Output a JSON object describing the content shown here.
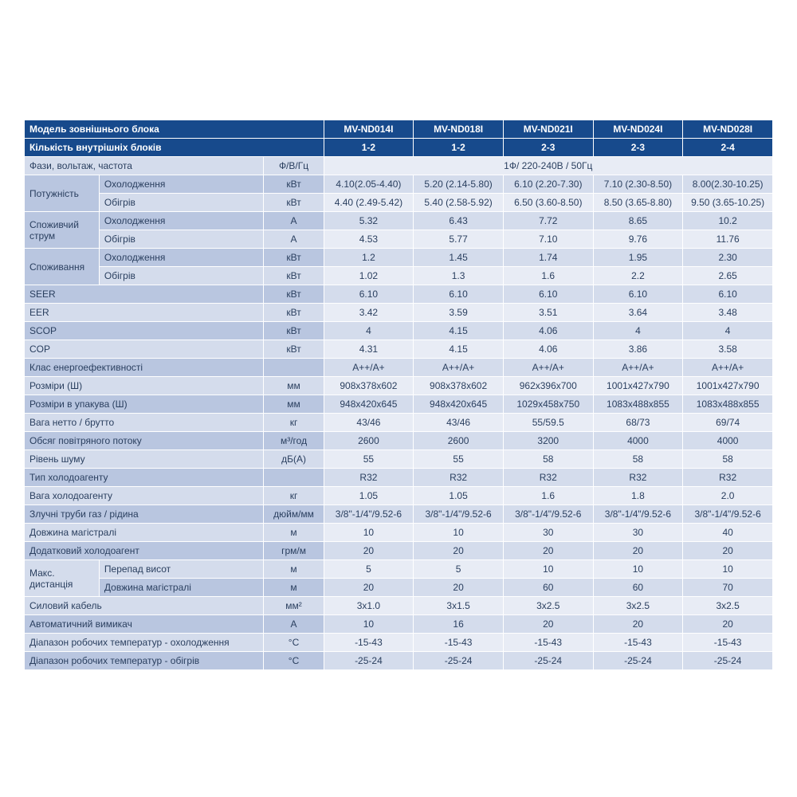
{
  "colors": {
    "header_bg": "#174a8c",
    "header_fg": "#ffffff",
    "row_a_label": "#b9c6e0",
    "row_a_val": "#d4dcec",
    "row_b_label": "#d4dcec",
    "row_b_val": "#e8ecf5",
    "text": "#2a3f5f"
  },
  "header": {
    "model_label": "Модель зовнішнього блока",
    "models": [
      "MV-ND014I",
      "MV-ND018I",
      "MV-ND021I",
      "MV-ND024I",
      "MV-ND028I"
    ],
    "indoor_label": "Кількість внутрішніх блоків",
    "indoor_counts": [
      "1-2",
      "1-2",
      "2-3",
      "2-3",
      "2-4"
    ]
  },
  "rows": {
    "phase": {
      "label": "Фази, вольтаж, частота",
      "unit": "Ф/В/Гц",
      "span_value": "1Ф/ 220-240В / 50Гц"
    },
    "power": {
      "label": "Потужність",
      "cool": "Охолодження",
      "heat": "Обігрів",
      "unit": "кВт",
      "cool_v": [
        "4.10(2.05-4.40)",
        "5.20 (2.14-5.80)",
        "6.10 (2.20-7.30)",
        "7.10 (2.30-8.50)",
        "8.00(2.30-10.25)"
      ],
      "heat_v": [
        "4.40 (2.49-5.42)",
        "5.40 (2.58-5.92)",
        "6.50 (3.60-8.50)",
        "8.50 (3.65-8.80)",
        "9.50 (3.65-10.25)"
      ]
    },
    "current": {
      "label": "Споживчий струм",
      "cool": "Охолодження",
      "heat": "Обігрів",
      "unit": "А",
      "cool_v": [
        "5.32",
        "6.43",
        "7.72",
        "8.65",
        "10.2"
      ],
      "heat_v": [
        "4.53",
        "5.77",
        "7.10",
        "9.76",
        "11.76"
      ]
    },
    "consumption": {
      "label": "Споживання",
      "cool": "Охолодження",
      "heat": "Обігрів",
      "unit": "кВт",
      "cool_v": [
        "1.2",
        "1.45",
        "1.74",
        "1.95",
        "2.30"
      ],
      "heat_v": [
        "1.02",
        "1.3",
        "1.6",
        "2.2",
        "2.65"
      ]
    },
    "seer": {
      "label": "SEER",
      "unit": "кВт",
      "v": [
        "6.10",
        "6.10",
        "6.10",
        "6.10",
        "6.10"
      ]
    },
    "eer": {
      "label": "EER",
      "unit": "кВт",
      "v": [
        "3.42",
        "3.59",
        "3.51",
        "3.64",
        "3.48"
      ]
    },
    "scop": {
      "label": "SCOP",
      "unit": "кВт",
      "v": [
        "4",
        "4.15",
        "4.06",
        "4",
        "4"
      ]
    },
    "cop": {
      "label": "COP",
      "unit": "кВт",
      "v": [
        "4.31",
        "4.15",
        "4.06",
        "3.86",
        "3.58"
      ]
    },
    "energy_class": {
      "label": "Клас енергоефективності",
      "unit": "",
      "v": [
        "A++/A+",
        "A++/A+",
        "A++/A+",
        "A++/A+",
        "A++/A+"
      ]
    },
    "dims": {
      "label": "Розміри (Ш)",
      "unit": "мм",
      "v": [
        "908x378x602",
        "908x378x602",
        "962x396x700",
        "1001x427x790",
        "1001x427x790"
      ]
    },
    "dims_pack": {
      "label": "Розміри в упакува (Ш)",
      "unit": "мм",
      "v": [
        "948x420x645",
        "948x420x645",
        "1029x458x750",
        "1083x488x855",
        "1083x488x855"
      ]
    },
    "weight": {
      "label": "Вага нетто / брутто",
      "unit": "кг",
      "v": [
        "43/46",
        "43/46",
        "55/59.5",
        "68/73",
        "69/74"
      ]
    },
    "airflow": {
      "label": "Обсяг повітряного потоку",
      "unit": "м³/год",
      "v": [
        "2600",
        "2600",
        "3200",
        "4000",
        "4000"
      ]
    },
    "noise": {
      "label": "Рівень шуму",
      "unit": "дБ(А)",
      "v": [
        "55",
        "55",
        "58",
        "58",
        "58"
      ]
    },
    "refrigerant_type": {
      "label": "Тип холодоагенту",
      "unit": "",
      "v": [
        "R32",
        "R32",
        "R32",
        "R32",
        "R32"
      ]
    },
    "refrigerant_weight": {
      "label": "Вага холодоагенту",
      "unit": "кг",
      "v": [
        "1.05",
        "1.05",
        "1.6",
        "1.8",
        "2.0"
      ]
    },
    "pipes": {
      "label": "Злучні труби газ / рідина",
      "unit": "дюйм/мм",
      "v": [
        "3/8\"-1/4\"/9.52-6",
        "3/8\"-1/4\"/9.52-6",
        "3/8\"-1/4\"/9.52-6",
        "3/8\"-1/4\"/9.52-6",
        "3/8\"-1/4\"/9.52-6"
      ]
    },
    "pipe_length": {
      "label": "Довжина магістралі",
      "unit": "м",
      "v": [
        "10",
        "10",
        "30",
        "30",
        "40"
      ]
    },
    "extra_refrigerant": {
      "label": "Додатковий холодоагент",
      "unit": "грм/м",
      "v": [
        "20",
        "20",
        "20",
        "20",
        "20"
      ]
    },
    "max_dist": {
      "label": "Макс. дистанція",
      "drop": "Перепад висот",
      "len": "Довжина магістралі",
      "unit": "м",
      "drop_v": [
        "5",
        "5",
        "10",
        "10",
        "10"
      ],
      "len_v": [
        "20",
        "20",
        "60",
        "60",
        "70"
      ]
    },
    "cable": {
      "label": "Силовий кабель",
      "unit": "мм²",
      "v": [
        "3x1.0",
        "3x1.5",
        "3x2.5",
        "3x2.5",
        "3x2.5"
      ]
    },
    "breaker": {
      "label": "Автоматичний вимикач",
      "unit": "А",
      "v": [
        "10",
        "16",
        "20",
        "20",
        "20"
      ]
    },
    "temp_cool": {
      "label": "Діапазон робочих температур - охолодження",
      "unit": "°C",
      "v": [
        "-15-43",
        "-15-43",
        "-15-43",
        "-15-43",
        "-15-43"
      ]
    },
    "temp_heat": {
      "label": "Діапазон робочих температур - обігрів",
      "unit": "°C",
      "v": [
        "-25-24",
        "-25-24",
        "-25-24",
        "-25-24",
        "-25-24"
      ]
    }
  }
}
